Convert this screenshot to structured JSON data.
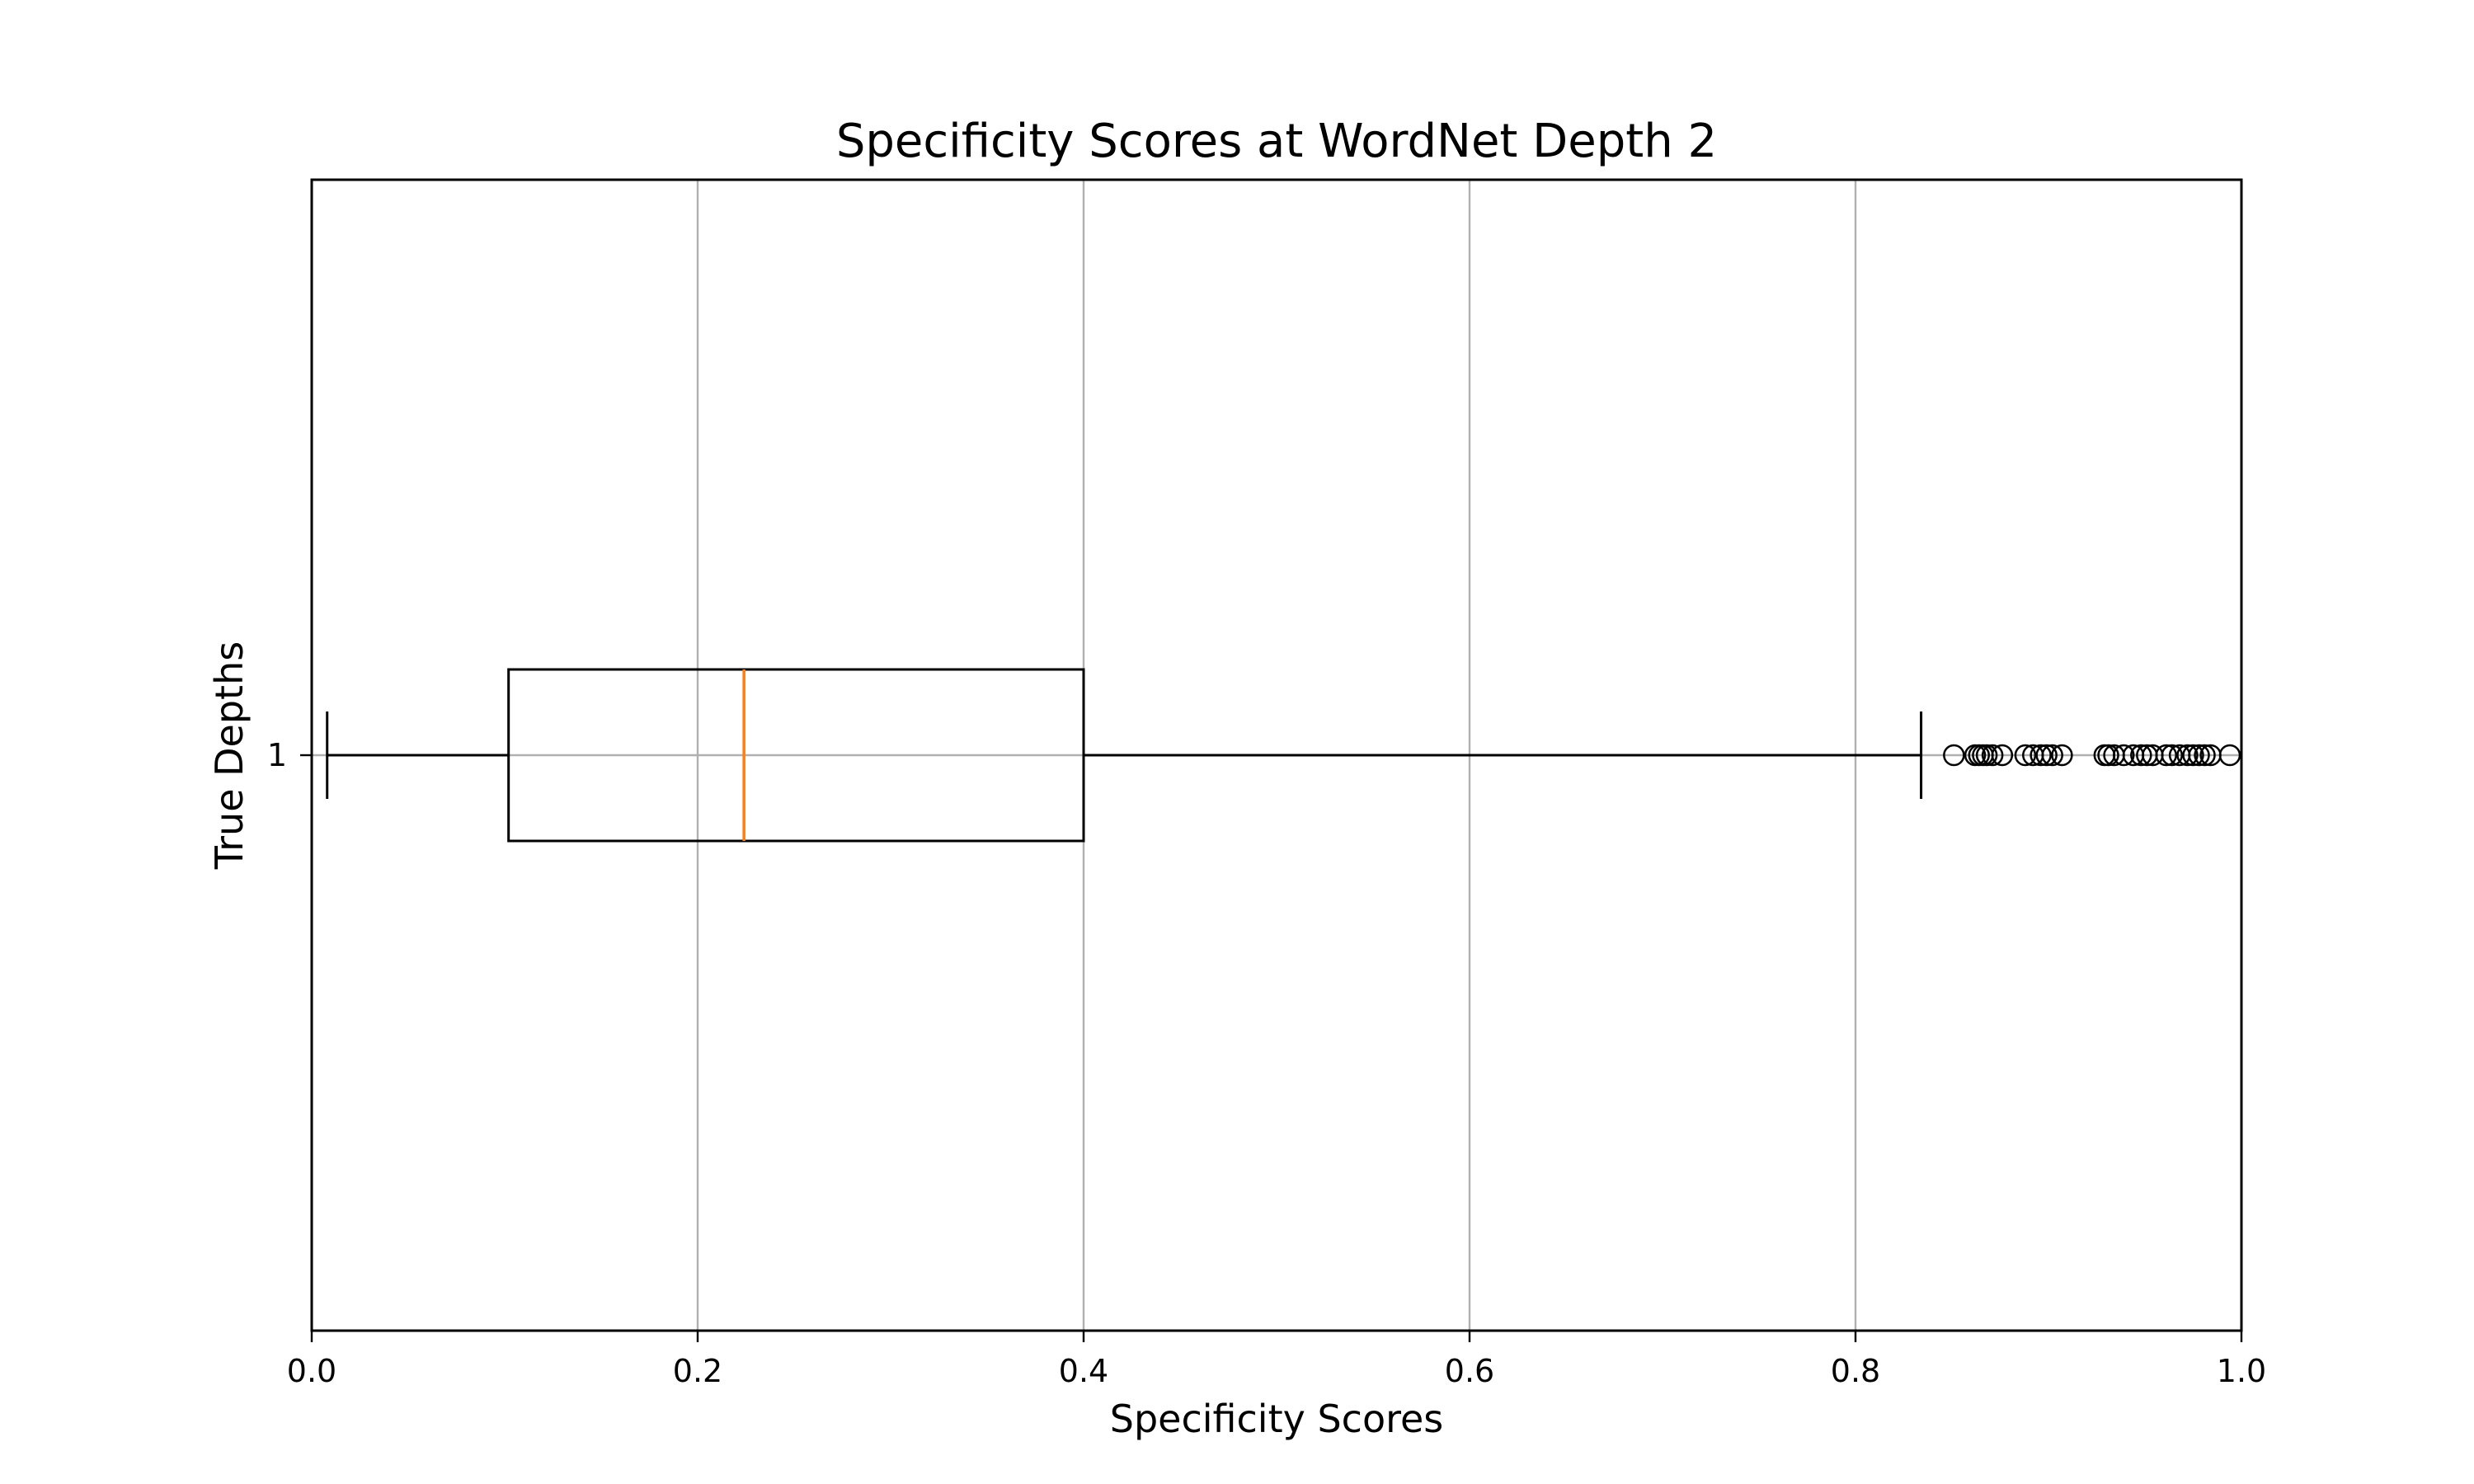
{
  "chart_data": {
    "type": "boxplot",
    "orientation": "horizontal",
    "title": "Specificity Scores at WordNet Depth 2",
    "xlabel": "Specificity Scores",
    "ylabel": "True Depths",
    "xlim": [
      0.0,
      1.0
    ],
    "x_ticks": [
      "0.0",
      "0.2",
      "0.4",
      "0.6",
      "0.8",
      "1.0"
    ],
    "y_ticks": [
      "1"
    ],
    "grid": true,
    "legend": "none",
    "colors": {
      "box": "#000000",
      "median": "#ff7f0e",
      "grid": "#b0b0b0"
    },
    "boxes": [
      {
        "label": "1",
        "whisker_low": 0.008,
        "q1": 0.102,
        "median": 0.224,
        "q3": 0.4,
        "whisker_high": 0.834,
        "outliers": [
          0.851,
          0.862,
          0.864,
          0.866,
          0.868,
          0.871,
          0.876,
          0.888,
          0.892,
          0.896,
          0.899,
          0.902,
          0.907,
          0.929,
          0.931,
          0.934,
          0.939,
          0.944,
          0.948,
          0.951,
          0.954,
          0.961,
          0.964,
          0.968,
          0.972,
          0.975,
          0.978,
          0.981,
          0.984,
          0.994
        ]
      }
    ]
  }
}
